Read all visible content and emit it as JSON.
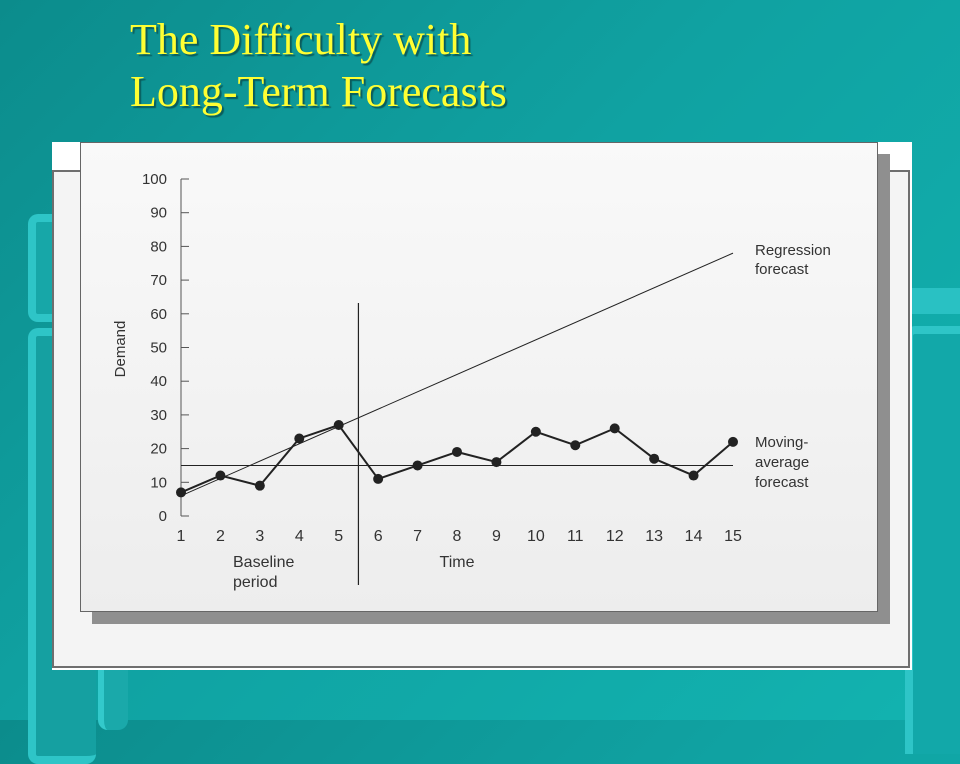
{
  "slide": {
    "title_line1": "The Difficulty with",
    "title_line2": "Long-Term Forecasts"
  },
  "colors": {
    "background": "#10a2a2",
    "title": "#ffff33",
    "chart_line": "#222222",
    "chart_bg": "#efefef"
  },
  "chart_data": {
    "type": "line",
    "title": "",
    "xlabel": "Time",
    "ylabel": "Demand",
    "xlim": [
      1,
      15
    ],
    "ylim": [
      0,
      100
    ],
    "x_ticks": [
      1,
      2,
      3,
      4,
      5,
      6,
      7,
      8,
      9,
      10,
      11,
      12,
      13,
      14,
      15
    ],
    "y_ticks": [
      0,
      10,
      20,
      30,
      40,
      50,
      60,
      70,
      80,
      90,
      100
    ],
    "grid": false,
    "series": [
      {
        "name": "",
        "marker": "circle",
        "x": [
          1,
          2,
          3,
          4,
          5,
          6,
          7,
          8,
          9,
          10,
          11,
          12,
          13,
          14,
          15
        ],
        "y": [
          7,
          12,
          9,
          23,
          27,
          11,
          15,
          19,
          16,
          25,
          21,
          26,
          17,
          12,
          22
        ]
      },
      {
        "name": "Regression forecast",
        "style": "line",
        "x": [
          1,
          15
        ],
        "y": [
          6,
          78
        ]
      },
      {
        "name": "Moving-average forecast",
        "style": "line",
        "x": [
          1,
          15
        ],
        "y": [
          15,
          15
        ]
      }
    ],
    "baseline_divider_x": 5.5,
    "annotations": {
      "regression_line1": "Regression",
      "regression_line2": "forecast",
      "moving_line1": "Moving-",
      "moving_line2": "average",
      "moving_line3": "forecast",
      "baseline_line1": "Baseline",
      "baseline_line2": "period"
    }
  }
}
